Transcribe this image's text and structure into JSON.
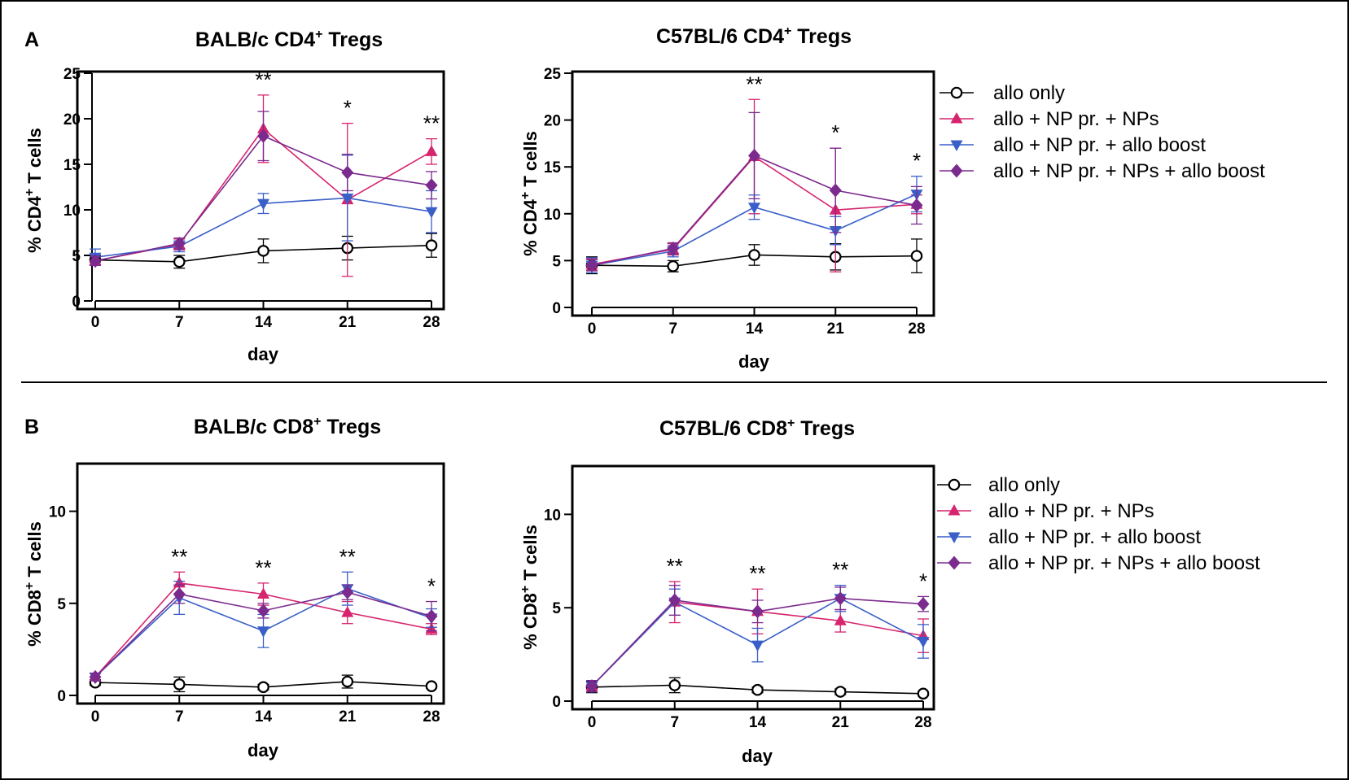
{
  "figure": {
    "rule_color": "#000000",
    "series_styles": [
      {
        "color": "#000000",
        "marker": "open-circle"
      },
      {
        "color": "#d6246e",
        "marker": "triangle-up"
      },
      {
        "color": "#3a5fc8",
        "marker": "triangle-down"
      },
      {
        "color": "#7b2a8e",
        "marker": "diamond"
      }
    ]
  },
  "chart_data": [
    {
      "type": "line",
      "panel": "A",
      "title": "BALB/c CD4",
      "title_sup": "+",
      "title_suffix": " Tregs",
      "xlabel": "day",
      "ylabel": "% CD4",
      "ylabel_sup": "+",
      "ylabel_suffix": " T cells",
      "x": [
        0,
        7,
        14,
        21,
        28
      ],
      "xlim": [
        0,
        28
      ],
      "ylim": [
        0,
        25
      ],
      "yticks": [
        0,
        5,
        10,
        15,
        20,
        25
      ],
      "significance": [
        "",
        "",
        "**",
        "*",
        "**"
      ],
      "series": [
        {
          "name": "allo only",
          "values": [
            4.5,
            4.3,
            5.5,
            5.8,
            6.1
          ],
          "errors": [
            0.5,
            0.7,
            1.3,
            1.3,
            1.3
          ]
        },
        {
          "name": "allo + NP pr. + NPs",
          "values": [
            4.4,
            6.2,
            18.9,
            11.1,
            16.4
          ],
          "errors": [
            0.5,
            0.6,
            3.7,
            8.4,
            1.4
          ]
        },
        {
          "name": "allo + NP pr. + allo boost",
          "values": [
            4.8,
            6.0,
            10.7,
            11.3,
            9.8
          ],
          "errors": [
            0.9,
            0.6,
            1.1,
            4.7,
            2.3
          ]
        },
        {
          "name": "allo + NP pr. + NPs + allo boost",
          "values": [
            4.4,
            6.3,
            18.1,
            14.1,
            12.7
          ],
          "errors": [
            0.5,
            0.6,
            2.7,
            2.0,
            1.5
          ]
        }
      ]
    },
    {
      "type": "line",
      "panel": "",
      "title": "C57BL/6 CD4",
      "title_sup": "+",
      "title_suffix": " Tregs",
      "xlabel": "day",
      "ylabel": "% CD4",
      "ylabel_sup": "+",
      "ylabel_suffix": " T cells",
      "x": [
        0,
        7,
        14,
        21,
        28
      ],
      "xlim": [
        0,
        28
      ],
      "ylim": [
        0,
        25
      ],
      "yticks": [
        0,
        5,
        10,
        15,
        20,
        25
      ],
      "significance": [
        "",
        "",
        "**",
        "*",
        "*"
      ],
      "series": [
        {
          "name": "allo only",
          "values": [
            4.5,
            4.4,
            5.6,
            5.4,
            5.5
          ],
          "errors": [
            0.9,
            0.6,
            1.1,
            1.4,
            1.8
          ]
        },
        {
          "name": "allo + NP pr. + NPs",
          "values": [
            4.6,
            6.2,
            16.1,
            10.4,
            11.0
          ],
          "errors": [
            0.6,
            0.6,
            6.1,
            6.6,
            1.0
          ]
        },
        {
          "name": "allo + NP pr. + allo boost",
          "values": [
            4.5,
            6.0,
            10.7,
            8.2,
            12.1
          ],
          "errors": [
            0.8,
            0.6,
            1.3,
            1.5,
            1.9
          ]
        },
        {
          "name": "allo + NP pr. + NPs + allo boost",
          "values": [
            4.5,
            6.3,
            16.2,
            12.5,
            10.9
          ],
          "errors": [
            0.6,
            0.6,
            4.6,
            4.5,
            2.0
          ]
        }
      ],
      "legend": "right"
    },
    {
      "type": "line",
      "panel": "B",
      "title": "BALB/c CD8",
      "title_sup": "+",
      "title_suffix": " Tregs",
      "xlabel": "day",
      "ylabel": "% CD8",
      "ylabel_sup": "+",
      "ylabel_suffix": " T cells",
      "x": [
        0,
        7,
        14,
        21,
        28
      ],
      "xlim": [
        0,
        28
      ],
      "ylim": [
        0,
        12.5
      ],
      "yticks": [
        0,
        5,
        10
      ],
      "significance": [
        "",
        "**",
        "**",
        "**",
        "*"
      ],
      "series": [
        {
          "name": "allo only",
          "values": [
            0.7,
            0.6,
            0.45,
            0.75,
            0.5
          ],
          "errors": [
            0.15,
            0.4,
            0.15,
            0.35,
            0.1
          ]
        },
        {
          "name": "allo + NP pr. + NPs",
          "values": [
            1.0,
            6.1,
            5.5,
            4.5,
            3.6
          ],
          "errors": [
            0.2,
            0.6,
            0.6,
            0.6,
            0.3
          ]
        },
        {
          "name": "allo + NP pr. + allo boost",
          "values": [
            1.0,
            5.3,
            3.5,
            5.8,
            4.2
          ],
          "errors": [
            0.2,
            0.9,
            0.9,
            0.9,
            0.5
          ]
        },
        {
          "name": "allo + NP pr. + NPs + allo boost",
          "values": [
            1.0,
            5.5,
            4.6,
            5.6,
            4.3
          ],
          "errors": [
            0.2,
            0.5,
            0.4,
            0.4,
            0.8
          ]
        }
      ]
    },
    {
      "type": "line",
      "panel": "",
      "title": "C57BL/6 CD8",
      "title_sup": "+",
      "title_suffix": " Tregs",
      "xlabel": "day",
      "ylabel": "% CD8",
      "ylabel_sup": "+",
      "ylabel_suffix": " T cells",
      "x": [
        0,
        7,
        14,
        21,
        28
      ],
      "xlim": [
        0,
        28
      ],
      "ylim": [
        0,
        12.5
      ],
      "yticks": [
        0,
        5,
        10
      ],
      "significance": [
        "",
        "**",
        "**",
        "**",
        "*"
      ],
      "series": [
        {
          "name": "allo only",
          "values": [
            0.75,
            0.85,
            0.6,
            0.5,
            0.4
          ],
          "errors": [
            0.3,
            0.4,
            0.15,
            0.15,
            0.1
          ]
        },
        {
          "name": "allo + NP pr. + NPs",
          "values": [
            0.8,
            5.3,
            4.8,
            4.3,
            3.5
          ],
          "errors": [
            0.3,
            1.1,
            1.2,
            0.6,
            0.9
          ]
        },
        {
          "name": "allo + NP pr. + allo boost",
          "values": [
            0.8,
            5.3,
            3.0,
            5.5,
            3.2
          ],
          "errors": [
            0.3,
            0.7,
            0.9,
            0.7,
            0.9
          ]
        },
        {
          "name": "allo + NP pr. + NPs + allo boost",
          "values": [
            0.8,
            5.4,
            4.8,
            5.5,
            5.2
          ],
          "errors": [
            0.3,
            0.8,
            0.6,
            0.6,
            0.4
          ]
        }
      ],
      "legend": "right"
    }
  ]
}
